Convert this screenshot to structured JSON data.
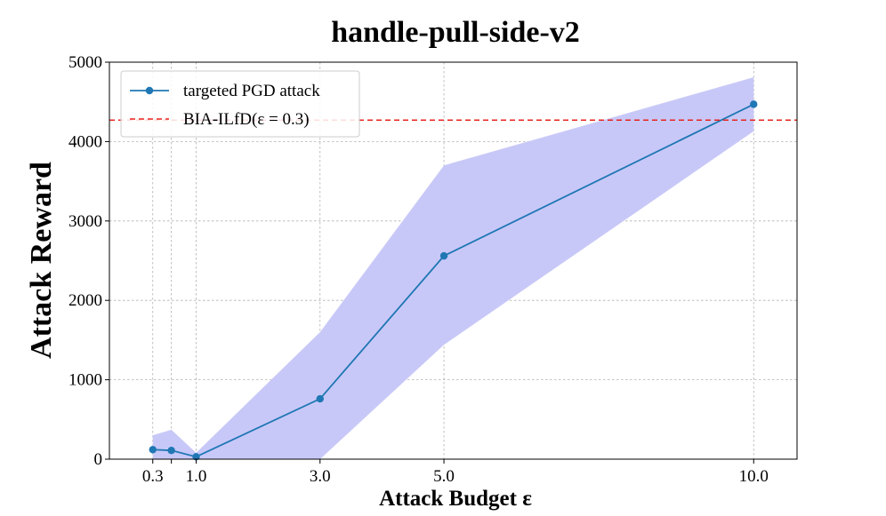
{
  "chart_data": {
    "type": "line",
    "title": "handle-pull-side-v2",
    "xlabel": "Attack Budget ε",
    "ylabel": "Attack Reward",
    "xlim": [
      -0.4,
      10.7
    ],
    "ylim": [
      0,
      5000
    ],
    "x_ticks": [
      0.3,
      0.6,
      1.0,
      3.0,
      5.0,
      10.0
    ],
    "x_tick_labels": [
      "0.3",
      "",
      "1.0",
      "3.0",
      "5.0",
      "10.0"
    ],
    "y_ticks": [
      0,
      1000,
      2000,
      3000,
      4000,
      5000
    ],
    "y_tick_labels": [
      "0",
      "1000",
      "2000",
      "3000",
      "4000",
      "5000"
    ],
    "grid": true,
    "legend_position": "upper-left",
    "series": [
      {
        "name": "targeted PGD attack",
        "color": "#1f77b4",
        "x": [
          0.3,
          0.6,
          1.0,
          3.0,
          5.0,
          10.0
        ],
        "y": [
          120,
          110,
          30,
          760,
          2560,
          4470
        ],
        "band_upper": [
          300,
          370,
          80,
          1600,
          3700,
          4810
        ],
        "band_lower": [
          0,
          0,
          0,
          0,
          1440,
          4130
        ],
        "band_color": "#c8c8f8"
      }
    ],
    "reference_lines": [
      {
        "name": "BIA-ILfD(ε = 0.3)",
        "y": 4270,
        "color": "#e8241f",
        "style": "dashed"
      }
    ]
  }
}
